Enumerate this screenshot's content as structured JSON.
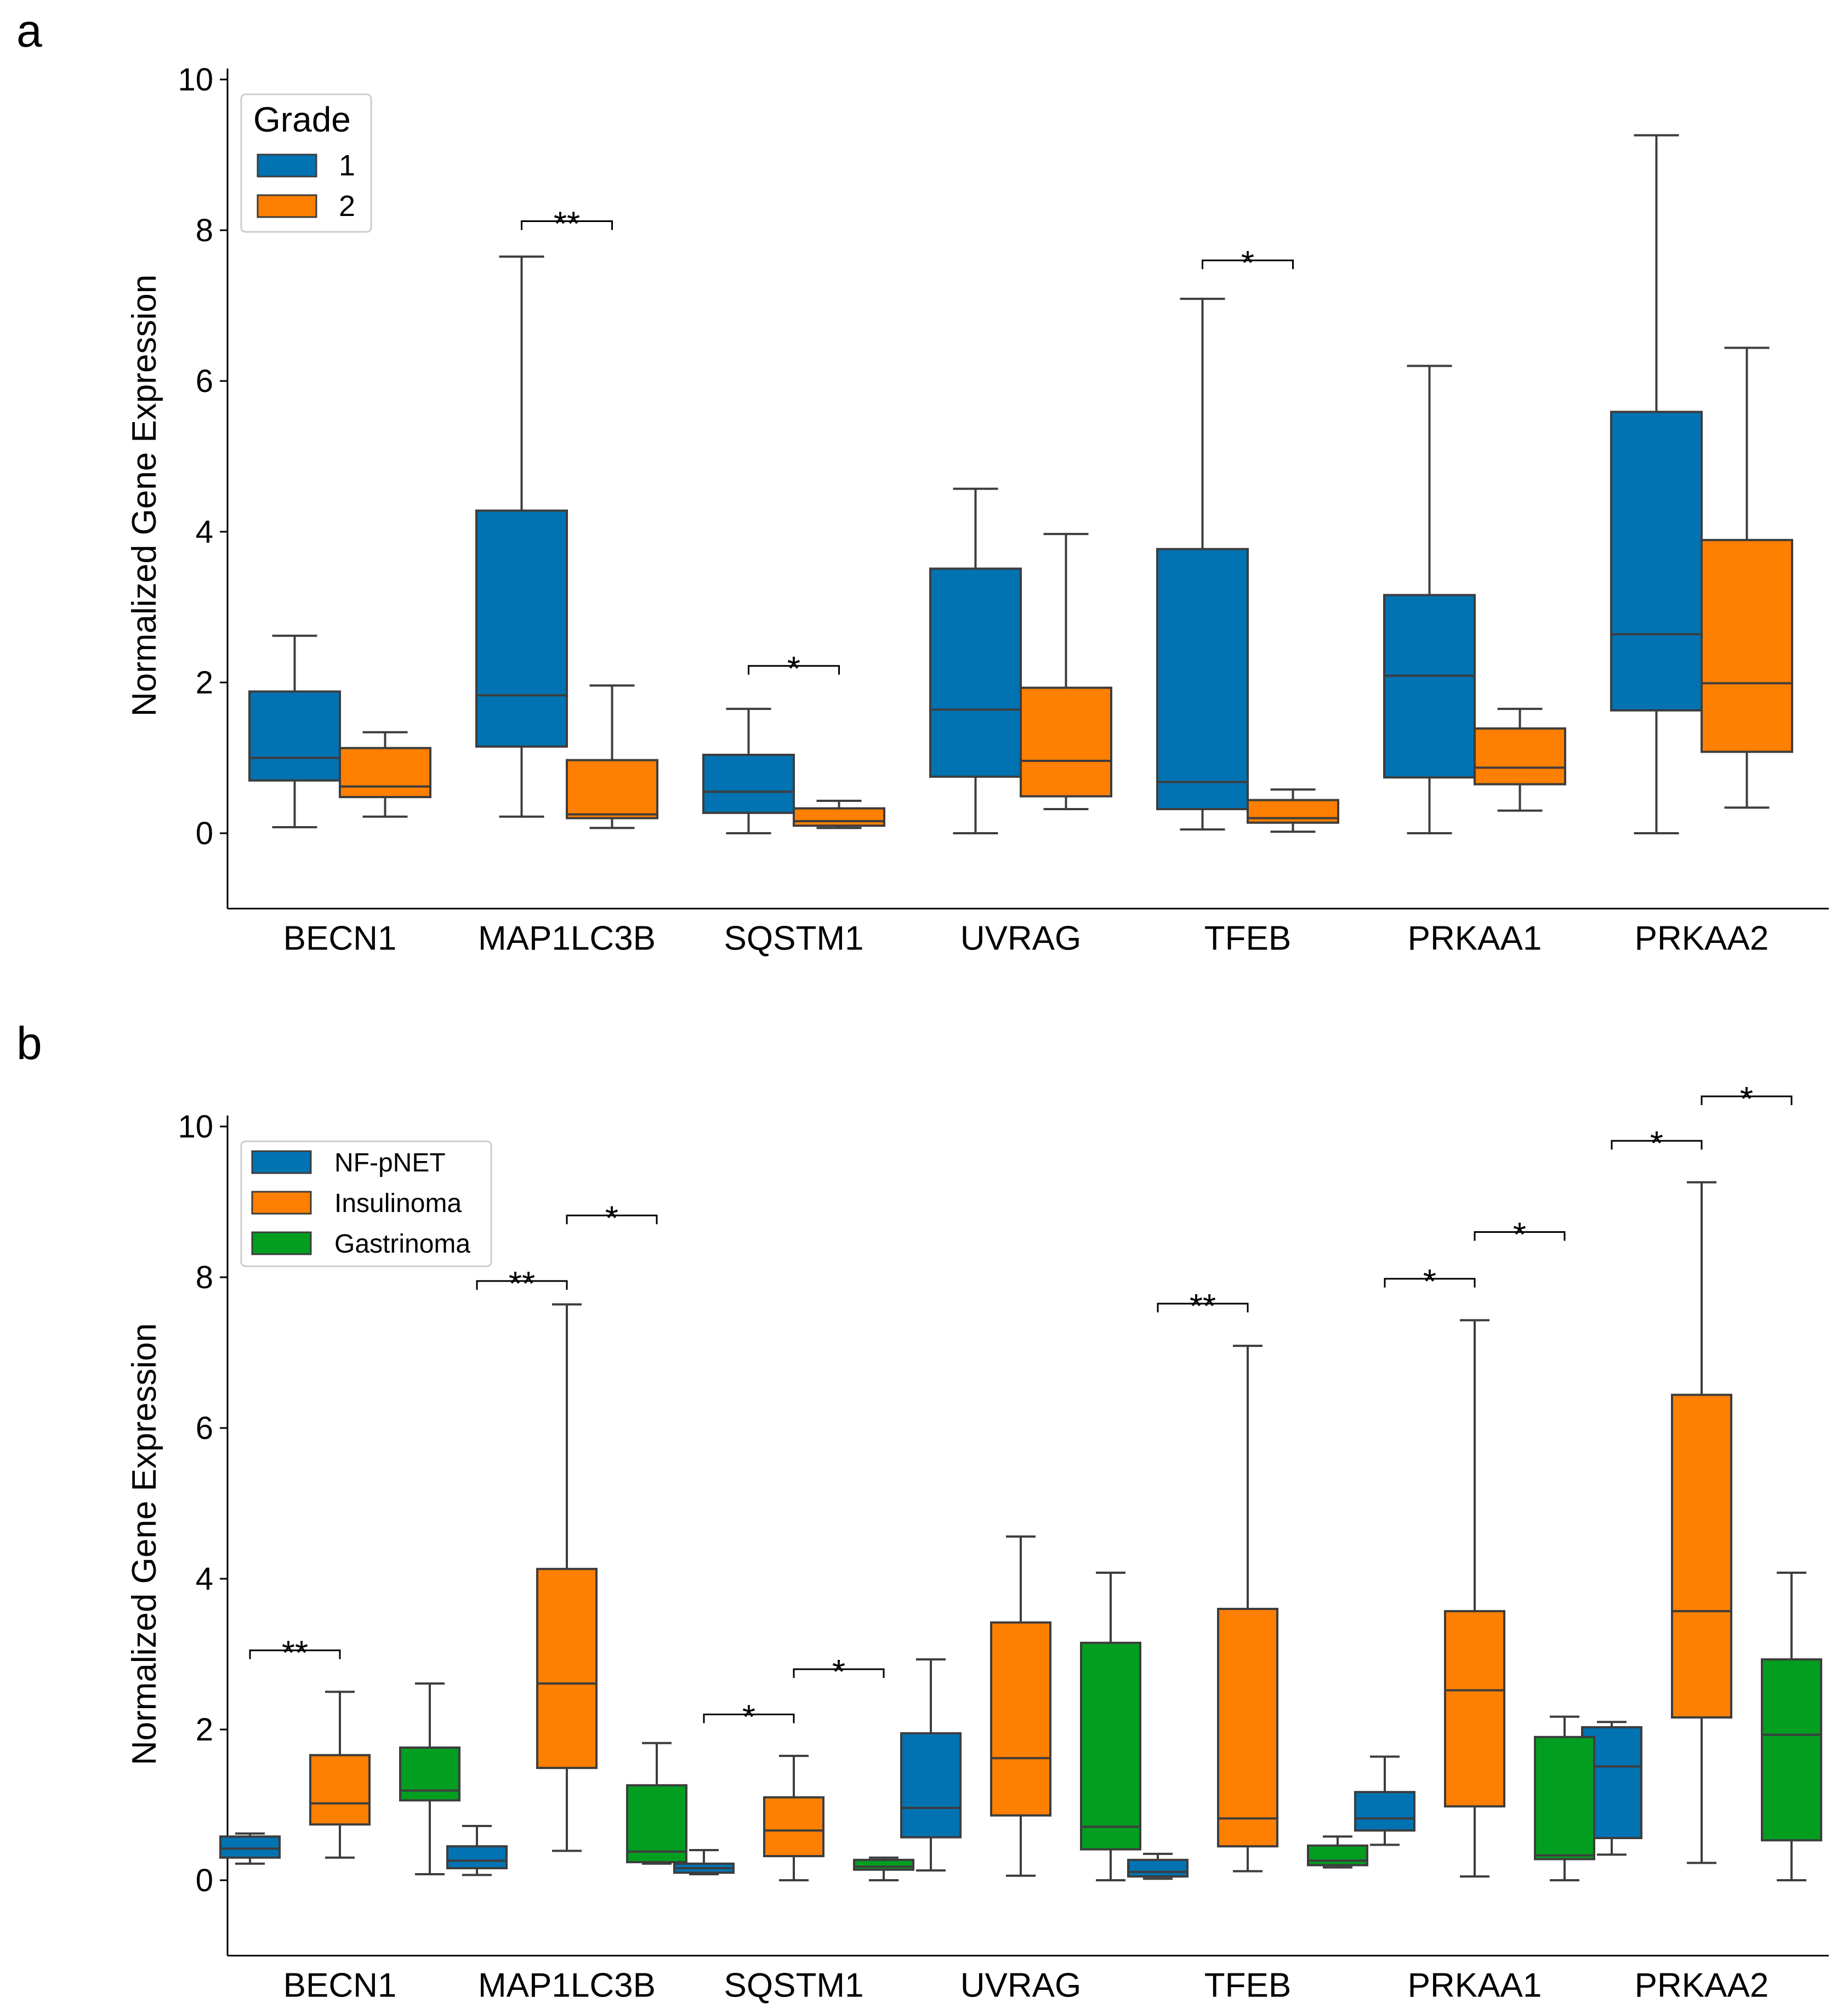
{
  "chart_data": [
    {
      "panel": "a",
      "type": "box",
      "xlabel": "",
      "ylabel": "Normalized Gene Expression",
      "ylim": [
        -1,
        10
      ],
      "yticks": [
        0,
        2,
        4,
        6,
        8,
        10
      ],
      "categories": [
        "BECN1",
        "MAP1LC3B",
        "SQSTM1",
        "UVRAG",
        "TFEB",
        "PRKAA1",
        "PRKAA2"
      ],
      "legend": {
        "title": "Grade",
        "position": "top-left"
      },
      "series": [
        {
          "name": "1",
          "color": "#0173B2",
          "boxes": [
            {
              "min": 0.08,
              "q1": 0.7,
              "median": 1.0,
              "q3": 1.88,
              "max": 2.62
            },
            {
              "min": 0.22,
              "q1": 1.15,
              "median": 1.83,
              "q3": 4.28,
              "max": 7.65
            },
            {
              "min": 0.0,
              "q1": 0.27,
              "median": 0.55,
              "q3": 1.04,
              "max": 1.65
            },
            {
              "min": 0.0,
              "q1": 0.75,
              "median": 1.64,
              "q3": 3.51,
              "max": 4.57
            },
            {
              "min": 0.05,
              "q1": 0.32,
              "median": 0.68,
              "q3": 3.77,
              "max": 7.09
            },
            {
              "min": 0.0,
              "q1": 0.74,
              "median": 2.09,
              "q3": 3.16,
              "max": 6.2
            },
            {
              "min": 0.0,
              "q1": 1.63,
              "median": 2.64,
              "q3": 5.59,
              "max": 9.26
            }
          ]
        },
        {
          "name": "2",
          "color": "#FF7F00",
          "boxes": [
            {
              "min": 0.22,
              "q1": 0.48,
              "median": 0.62,
              "q3": 1.13,
              "max": 1.34
            },
            {
              "min": 0.07,
              "q1": 0.2,
              "median": 0.25,
              "q3": 0.97,
              "max": 1.96
            },
            {
              "min": 0.07,
              "q1": 0.1,
              "median": 0.16,
              "q3": 0.33,
              "max": 0.43
            },
            {
              "min": 0.32,
              "q1": 0.49,
              "median": 0.96,
              "q3": 1.93,
              "max": 3.97
            },
            {
              "min": 0.02,
              "q1": 0.14,
              "median": 0.2,
              "q3": 0.44,
              "max": 0.58
            },
            {
              "min": 0.3,
              "q1": 0.65,
              "median": 0.87,
              "q3": 1.39,
              "max": 1.65
            },
            {
              "min": 0.34,
              "q1": 1.08,
              "median": 1.99,
              "q3": 3.89,
              "max": 6.44
            }
          ]
        }
      ],
      "significance": [
        {
          "category": "MAP1LC3B",
          "from": "1",
          "to": "2",
          "label": "**",
          "y": 8.12
        },
        {
          "category": "SQSTM1",
          "from": "1",
          "to": "2",
          "label": "*",
          "y": 2.22
        },
        {
          "category": "TFEB",
          "from": "1",
          "to": "2",
          "label": "*",
          "y": 7.6
        }
      ]
    },
    {
      "panel": "b",
      "type": "box",
      "xlabel": "",
      "ylabel": "Normalized Gene Expression",
      "ylim": [
        -1,
        10
      ],
      "yticks": [
        0,
        2,
        4,
        6,
        8,
        10
      ],
      "categories": [
        "BECN1",
        "MAP1LC3B",
        "SQSTM1",
        "UVRAG",
        "TFEB",
        "PRKAA1",
        "PRKAA2"
      ],
      "legend": {
        "title": "",
        "position": "top-left"
      },
      "series": [
        {
          "name": "NF-pNET",
          "color": "#0173B2",
          "boxes": [
            {
              "min": 0.22,
              "q1": 0.3,
              "median": 0.42,
              "q3": 0.58,
              "max": 0.62
            },
            {
              "min": 0.07,
              "q1": 0.16,
              "median": 0.26,
              "q3": 0.45,
              "max": 0.72
            },
            {
              "min": 0.08,
              "q1": 0.1,
              "median": 0.16,
              "q3": 0.22,
              "max": 0.4
            },
            {
              "min": 0.13,
              "q1": 0.57,
              "median": 0.96,
              "q3": 1.95,
              "max": 2.93
            },
            {
              "min": 0.02,
              "q1": 0.05,
              "median": 0.11,
              "q3": 0.27,
              "max": 0.35
            },
            {
              "min": 0.47,
              "q1": 0.66,
              "median": 0.82,
              "q3": 1.17,
              "max": 1.64
            },
            {
              "min": 0.34,
              "q1": 0.56,
              "median": 1.51,
              "q3": 2.03,
              "max": 2.1
            }
          ]
        },
        {
          "name": "Insulinoma",
          "color": "#FF7F00",
          "boxes": [
            {
              "min": 0.3,
              "q1": 0.74,
              "median": 1.02,
              "q3": 1.66,
              "max": 2.5
            },
            {
              "min": 0.39,
              "q1": 1.49,
              "median": 2.61,
              "q3": 4.13,
              "max": 7.64
            },
            {
              "min": 0.0,
              "q1": 0.32,
              "median": 0.66,
              "q3": 1.1,
              "max": 1.65
            },
            {
              "min": 0.06,
              "q1": 0.86,
              "median": 1.62,
              "q3": 3.42,
              "max": 4.56
            },
            {
              "min": 0.12,
              "q1": 0.45,
              "median": 0.82,
              "q3": 3.6,
              "max": 7.09
            },
            {
              "min": 0.05,
              "q1": 0.98,
              "median": 2.52,
              "q3": 3.57,
              "max": 7.43
            },
            {
              "min": 0.23,
              "q1": 2.16,
              "median": 3.57,
              "q3": 6.44,
              "max": 9.26
            }
          ]
        },
        {
          "name": "Gastrinoma",
          "color": "#029E20",
          "boxes": [
            {
              "min": 0.08,
              "q1": 1.06,
              "median": 1.19,
              "q3": 1.76,
              "max": 2.61
            },
            {
              "min": 0.22,
              "q1": 0.24,
              "median": 0.38,
              "q3": 1.26,
              "max": 1.82
            },
            {
              "min": 0.0,
              "q1": 0.14,
              "median": 0.18,
              "q3": 0.27,
              "max": 0.3
            },
            {
              "min": 0.0,
              "q1": 0.41,
              "median": 0.71,
              "q3": 3.15,
              "max": 4.08
            },
            {
              "min": 0.17,
              "q1": 0.2,
              "median": 0.26,
              "q3": 0.46,
              "max": 0.58
            },
            {
              "min": 0.0,
              "q1": 0.28,
              "median": 0.33,
              "q3": 1.9,
              "max": 2.17
            },
            {
              "min": 0.0,
              "q1": 0.53,
              "median": 1.93,
              "q3": 2.93,
              "max": 4.08
            }
          ]
        }
      ],
      "significance": [
        {
          "category": "BECN1",
          "from": "NF-pNET",
          "to": "Insulinoma",
          "label": "**",
          "y": 3.05
        },
        {
          "category": "MAP1LC3B",
          "from": "NF-pNET",
          "to": "Insulinoma",
          "label": "**",
          "y": 7.95
        },
        {
          "category": "MAP1LC3B",
          "from": "Insulinoma",
          "to": "Gastrinoma",
          "label": "*",
          "y": 8.82
        },
        {
          "category": "SQSTM1",
          "from": "NF-pNET",
          "to": "Insulinoma",
          "label": "*",
          "y": 2.2
        },
        {
          "category": "SQSTM1",
          "from": "Insulinoma",
          "to": "Gastrinoma",
          "label": "*",
          "y": 2.8
        },
        {
          "category": "TFEB",
          "from": "NF-pNET",
          "to": "Insulinoma",
          "label": "**",
          "y": 7.65
        },
        {
          "category": "PRKAA1",
          "from": "NF-pNET",
          "to": "Insulinoma",
          "label": "*",
          "y": 7.98
        },
        {
          "category": "PRKAA1",
          "from": "Insulinoma",
          "to": "Gastrinoma",
          "label": "*",
          "y": 8.6
        },
        {
          "category": "PRKAA2",
          "from": "NF-pNET",
          "to": "Insulinoma",
          "label": "*",
          "y": 9.81
        },
        {
          "category": "PRKAA2",
          "from": "Insulinoma",
          "to": "Gastrinoma",
          "label": "*",
          "y": 10.4
        }
      ]
    }
  ]
}
